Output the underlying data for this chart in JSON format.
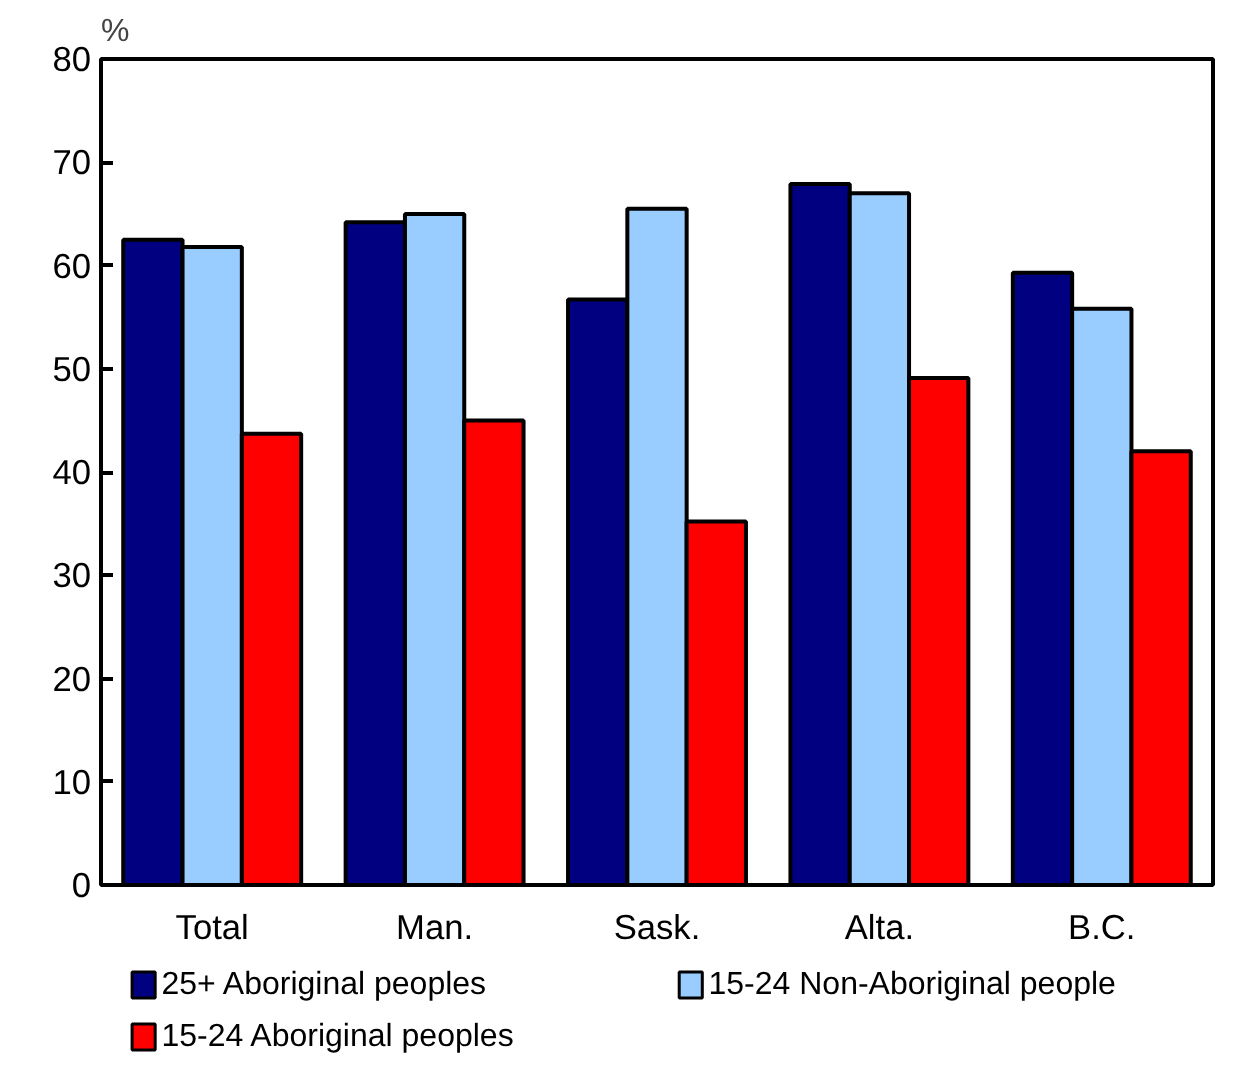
{
  "chart_data": {
    "type": "bar",
    "ylabel": "%",
    "categories": [
      "Total",
      "Man.",
      "Sask.",
      "Alta.",
      "B.C."
    ],
    "series": [
      {
        "name": "25+ Aboriginal peoples",
        "color": "#000080",
        "values": [
          62.5,
          64.2,
          56.7,
          67.9,
          59.3
        ]
      },
      {
        "name": "15-24 Non-Aboriginal people",
        "color": "#99ccff",
        "values": [
          61.8,
          65.0,
          65.5,
          67.0,
          55.8
        ]
      },
      {
        "name": "15-24 Aboriginal peoples",
        "color": "#ff0000",
        "values": [
          43.7,
          45.0,
          35.2,
          49.1,
          42.0
        ]
      }
    ],
    "ylim": [
      0,
      80
    ],
    "yticks": [
      0,
      10,
      20,
      30,
      40,
      50,
      60,
      70,
      80
    ],
    "grid": false,
    "legend": "bottom"
  }
}
